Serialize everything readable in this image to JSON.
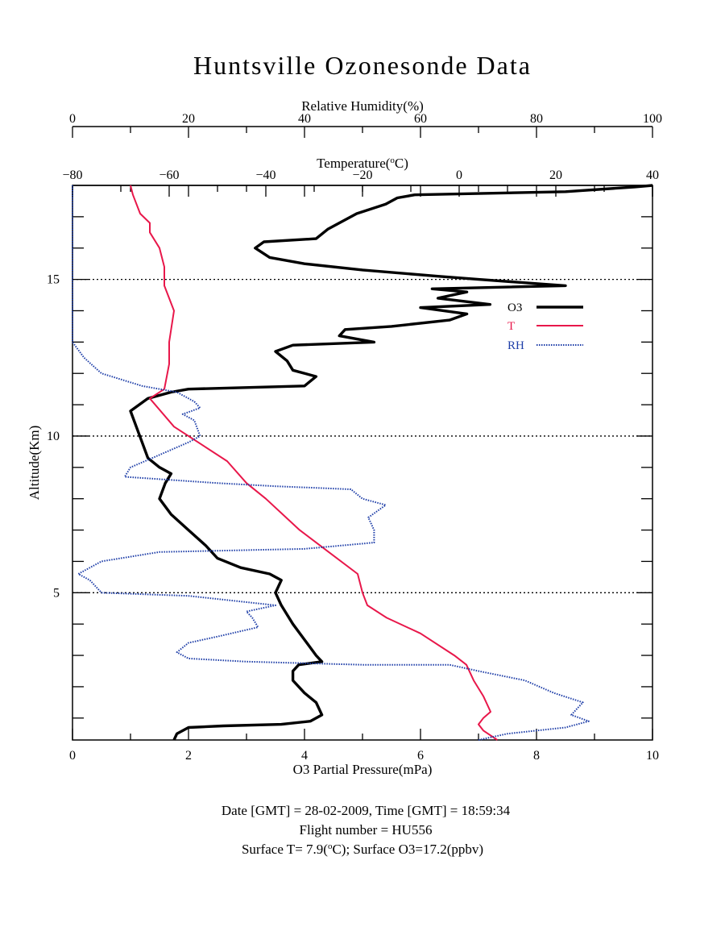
{
  "chart_data": {
    "type": "line",
    "title": "Huntsville Ozonesonde Data",
    "ylabel": "Altitude(Km)",
    "ylim": [
      0.3,
      18
    ],
    "yticks": [
      5,
      10,
      15
    ],
    "gridlines_y": [
      5,
      10,
      15
    ],
    "axes": {
      "ozone": {
        "label": "O3 Partial Pressure(mPa)",
        "range": [
          0,
          10
        ],
        "ticks": [
          0,
          2,
          4,
          6,
          8,
          10
        ],
        "position": "bottom"
      },
      "temperature": {
        "label_main": "Temperature(",
        "label_sup": "o",
        "label_end": "C)",
        "range": [
          -80,
          40
        ],
        "ticks": [
          -80,
          -60,
          -40,
          -20,
          0,
          20,
          40
        ],
        "position": "top-inner"
      },
      "humidity": {
        "label": "Relative Humidity(%)",
        "range": [
          0,
          100
        ],
        "ticks": [
          0,
          20,
          40,
          60,
          80,
          100
        ],
        "position": "top-outer"
      }
    },
    "legend": {
      "placement": "upper-right",
      "entries": [
        "O3",
        "T",
        "RH"
      ]
    },
    "series": [
      {
        "name": "O3",
        "axis": "ozone",
        "color": "#000000",
        "points": [
          [
            1.75,
            0.3
          ],
          [
            1.8,
            0.5
          ],
          [
            2.0,
            0.7
          ],
          [
            2.6,
            0.75
          ],
          [
            3.6,
            0.8
          ],
          [
            4.1,
            0.9
          ],
          [
            4.3,
            1.1
          ],
          [
            4.2,
            1.5
          ],
          [
            4.0,
            1.8
          ],
          [
            3.8,
            2.2
          ],
          [
            3.8,
            2.5
          ],
          [
            3.9,
            2.7
          ],
          [
            4.3,
            2.8
          ],
          [
            4.2,
            3.0
          ],
          [
            4.0,
            3.5
          ],
          [
            3.8,
            4.0
          ],
          [
            3.6,
            4.6
          ],
          [
            3.5,
            5.0
          ],
          [
            3.6,
            5.4
          ],
          [
            3.4,
            5.6
          ],
          [
            2.9,
            5.8
          ],
          [
            2.5,
            6.1
          ],
          [
            2.3,
            6.5
          ],
          [
            2.0,
            7.0
          ],
          [
            1.7,
            7.5
          ],
          [
            1.5,
            8.0
          ],
          [
            1.6,
            8.5
          ],
          [
            1.7,
            8.8
          ],
          [
            1.5,
            9.0
          ],
          [
            1.3,
            9.3
          ],
          [
            1.2,
            9.8
          ],
          [
            1.1,
            10.3
          ],
          [
            1.0,
            10.8
          ],
          [
            1.3,
            11.2
          ],
          [
            1.7,
            11.4
          ],
          [
            2.0,
            11.5
          ],
          [
            4.0,
            11.6
          ],
          [
            4.2,
            11.9
          ],
          [
            3.8,
            12.1
          ],
          [
            3.7,
            12.4
          ],
          [
            3.5,
            12.7
          ],
          [
            3.8,
            12.9
          ],
          [
            5.2,
            13.0
          ],
          [
            4.6,
            13.2
          ],
          [
            4.7,
            13.4
          ],
          [
            5.5,
            13.5
          ],
          [
            6.5,
            13.7
          ],
          [
            6.8,
            13.9
          ],
          [
            6.0,
            14.1
          ],
          [
            7.2,
            14.2
          ],
          [
            6.3,
            14.4
          ],
          [
            6.8,
            14.6
          ],
          [
            6.2,
            14.7
          ],
          [
            8.5,
            14.8
          ],
          [
            7.0,
            15.0
          ],
          [
            6.3,
            15.1
          ],
          [
            5.0,
            15.3
          ],
          [
            4.0,
            15.5
          ],
          [
            3.4,
            15.7
          ],
          [
            3.15,
            16.0
          ],
          [
            3.3,
            16.2
          ],
          [
            4.2,
            16.3
          ],
          [
            4.4,
            16.6
          ],
          [
            4.7,
            16.9
          ],
          [
            4.9,
            17.1
          ],
          [
            5.4,
            17.4
          ],
          [
            5.6,
            17.6
          ],
          [
            5.9,
            17.7
          ],
          [
            8.5,
            17.8
          ],
          [
            9.7,
            17.95
          ],
          [
            10.0,
            18.0
          ]
        ]
      },
      {
        "name": "T",
        "axis": "temperature",
        "color": "#e8174a",
        "points": [
          [
            7.9,
            0.3
          ],
          [
            5.0,
            0.6
          ],
          [
            4.0,
            0.8
          ],
          [
            5.0,
            1.0
          ],
          [
            6.5,
            1.2
          ],
          [
            5.0,
            1.7
          ],
          [
            3.0,
            2.2
          ],
          [
            1.5,
            2.7
          ],
          [
            -1.0,
            3.0
          ],
          [
            -8.0,
            3.7
          ],
          [
            -15.0,
            4.2
          ],
          [
            -19.0,
            4.6
          ],
          [
            -20.0,
            5.0
          ],
          [
            -21.0,
            5.6
          ],
          [
            -27.0,
            6.3
          ],
          [
            -33.0,
            7.0
          ],
          [
            -40.0,
            8.0
          ],
          [
            -44.0,
            8.5
          ],
          [
            -48.0,
            9.2
          ],
          [
            -54.0,
            9.8
          ],
          [
            -59.0,
            10.3
          ],
          [
            -64.0,
            11.2
          ],
          [
            -61.0,
            11.5
          ],
          [
            -60.0,
            12.3
          ],
          [
            -60.0,
            13.0
          ],
          [
            -59.5,
            13.5
          ],
          [
            -59.0,
            14.0
          ],
          [
            -61.0,
            14.8
          ],
          [
            -61.0,
            15.4
          ],
          [
            -62.0,
            16.0
          ],
          [
            -64.0,
            16.5
          ],
          [
            -64.0,
            16.8
          ],
          [
            -66.0,
            17.1
          ],
          [
            -67.5,
            17.7
          ],
          [
            -68.0,
            18.0
          ]
        ]
      },
      {
        "name": "RH",
        "axis": "humidity",
        "color": "#1e3ea8",
        "points": [
          [
            70.0,
            0.3
          ],
          [
            75.0,
            0.5
          ],
          [
            85.0,
            0.7
          ],
          [
            89.0,
            0.9
          ],
          [
            86.0,
            1.1
          ],
          [
            87.0,
            1.3
          ],
          [
            88.0,
            1.5
          ],
          [
            83.0,
            1.8
          ],
          [
            78.0,
            2.2
          ],
          [
            70.0,
            2.5
          ],
          [
            65.0,
            2.7
          ],
          [
            50.0,
            2.7
          ],
          [
            30.0,
            2.8
          ],
          [
            20.0,
            2.9
          ],
          [
            18.0,
            3.1
          ],
          [
            20.0,
            3.4
          ],
          [
            25.0,
            3.6
          ],
          [
            32.0,
            3.9
          ],
          [
            31.0,
            4.2
          ],
          [
            30.0,
            4.4
          ],
          [
            35.0,
            4.6
          ],
          [
            20.0,
            4.9
          ],
          [
            5.0,
            5.0
          ],
          [
            3.0,
            5.4
          ],
          [
            1.0,
            5.6
          ],
          [
            5.0,
            6.0
          ],
          [
            15.0,
            6.3
          ],
          [
            40.0,
            6.4
          ],
          [
            52.0,
            6.6
          ],
          [
            52.0,
            7.0
          ],
          [
            51.0,
            7.4
          ],
          [
            54.0,
            7.8
          ],
          [
            50.0,
            8.0
          ],
          [
            48.0,
            8.3
          ],
          [
            35.0,
            8.4
          ],
          [
            25.0,
            8.5
          ],
          [
            9.0,
            8.7
          ],
          [
            10.0,
            9.0
          ],
          [
            15.0,
            9.4
          ],
          [
            20.0,
            9.8
          ],
          [
            22.0,
            10.0
          ],
          [
            21.0,
            10.5
          ],
          [
            19.0,
            10.7
          ],
          [
            22.0,
            10.9
          ],
          [
            21.0,
            11.1
          ],
          [
            18.0,
            11.4
          ],
          [
            12.0,
            11.6
          ],
          [
            5.0,
            12.0
          ],
          [
            2.0,
            12.5
          ],
          [
            0.0,
            13.0
          ],
          [
            0.0,
            18.0
          ]
        ]
      }
    ]
  },
  "footer": {
    "line1": "Date [GMT] = 28-02-2009,  Time [GMT] = 18:59:34",
    "line2": "Flight number = HU556",
    "line3_a": "Surface T= 7.9(",
    "line3_sup": "o",
    "line3_b": "C); Surface O3=17.2(ppbv)"
  }
}
